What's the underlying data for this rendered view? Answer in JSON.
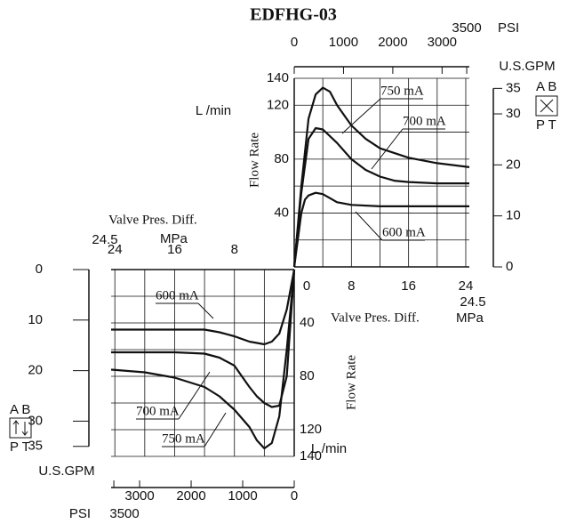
{
  "chart_data": [
    {
      "type": "line",
      "title": "EDFHG-03",
      "x_label": "Valve Pres. Diff.",
      "x_unit": "MPa",
      "y_label": "Flow Rate",
      "y_unit": "L /min",
      "xlim": [
        0,
        24.5
      ],
      "xticks": [
        0,
        8,
        16,
        24
      ],
      "xminor": [
        4,
        12,
        20
      ],
      "ylim": [
        0,
        140
      ],
      "yticks": [
        40,
        80,
        120,
        140
      ],
      "yminor": [
        20,
        60,
        100
      ],
      "x2_label": "PSI",
      "x2lim": [
        0,
        3553
      ],
      "x2ticks": [
        0,
        1000,
        2000,
        3000,
        3500
      ],
      "y2_label": "U.S.GPM",
      "y2lim": [
        0,
        36.98
      ],
      "y2ticks": [
        0,
        10,
        20,
        30,
        35
      ],
      "port_labels": [
        "A B",
        "P T"
      ],
      "grid": true,
      "series": [
        {
          "name": "750 mA",
          "color": "#111111",
          "x": [
            0,
            1,
            2,
            3,
            4,
            5,
            6,
            8,
            10,
            12,
            16,
            20,
            24.5
          ],
          "values": [
            0,
            60,
            110,
            128,
            133,
            130,
            120,
            105,
            95,
            88,
            81,
            77,
            74
          ]
        },
        {
          "name": "700 mA",
          "color": "#111111",
          "x": [
            0,
            1,
            2,
            3,
            4,
            6,
            8,
            10,
            12,
            14,
            16,
            20,
            24.5
          ],
          "values": [
            0,
            55,
            95,
            103,
            102,
            92,
            80,
            72,
            67,
            64,
            63,
            62,
            62
          ]
        },
        {
          "name": "600 mA",
          "color": "#111111",
          "x": [
            0,
            1,
            1.5,
            2,
            3,
            4,
            6,
            8,
            12,
            24.5
          ],
          "values": [
            0,
            40,
            50,
            53,
            55,
            54,
            48,
            46,
            45,
            45
          ]
        }
      ]
    },
    {
      "type": "line",
      "x_label": "Valve Pres. Diff.",
      "x_unit": "MPa",
      "y_label": "Flow Rate",
      "y_unit": "L /min",
      "xlim": [
        0,
        24.5
      ],
      "xticks": [
        8,
        16,
        24
      ],
      "xminor": [
        4,
        12,
        20
      ],
      "ylim": [
        0,
        140
      ],
      "yticks": [
        40,
        80,
        120,
        140
      ],
      "yminor": [
        20,
        60,
        100
      ],
      "x2_label": "PSI",
      "x2lim": [
        0,
        3553
      ],
      "x2ticks": [
        0,
        1000,
        2000,
        3000,
        3500
      ],
      "y2_label": "U.S.GPM",
      "y2lim": [
        0,
        36.98
      ],
      "y2ticks": [
        0,
        10,
        20,
        30,
        35
      ],
      "port_labels": [
        "A B",
        "P T"
      ],
      "grid": true,
      "series": [
        {
          "name": "600 mA",
          "color": "#111111",
          "x": [
            24.5,
            12,
            10,
            8,
            6,
            4,
            3,
            2,
            1,
            0
          ],
          "values": [
            45,
            45,
            47,
            50,
            54,
            56,
            54,
            48,
            30,
            0
          ]
        },
        {
          "name": "700 mA",
          "color": "#111111",
          "x": [
            24.5,
            16,
            12,
            10,
            8,
            7,
            6,
            5,
            4,
            3,
            2,
            1,
            0
          ],
          "values": [
            62,
            62,
            63,
            66,
            72,
            80,
            88,
            95,
            100,
            103,
            102,
            80,
            0
          ]
        },
        {
          "name": "750 mA",
          "color": "#111111",
          "x": [
            24.5,
            20,
            16,
            12,
            10,
            8,
            6,
            5,
            4,
            3,
            2,
            1,
            0
          ],
          "values": [
            75,
            77,
            81,
            88,
            95,
            105,
            118,
            128,
            134,
            130,
            110,
            60,
            0
          ]
        }
      ]
    }
  ]
}
